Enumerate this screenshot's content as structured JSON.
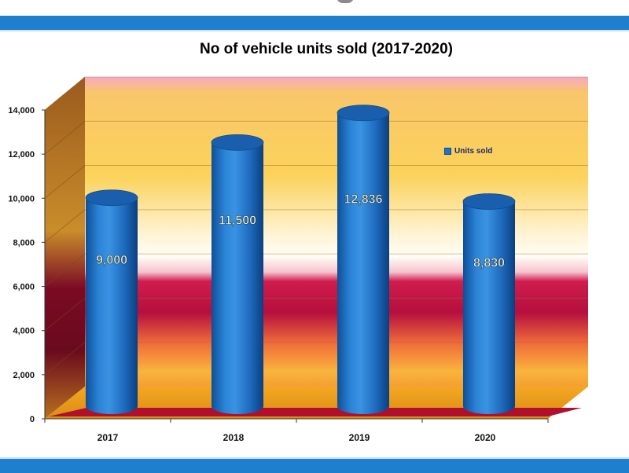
{
  "chart_data": {
    "type": "bar",
    "title": "No of vehicle units sold (2017-2020)",
    "categories": [
      "2017",
      "2018",
      "2019",
      "2020"
    ],
    "series": [
      {
        "name": "Units sold",
        "values": [
          9000,
          11500,
          12836,
          8830
        ],
        "labels": [
          "9,000",
          "11,500",
          "12,836",
          "8,830"
        ]
      }
    ],
    "ylim": [
      0,
      14000
    ],
    "yticks": [
      0,
      2000,
      4000,
      6000,
      8000,
      10000,
      12000,
      14000
    ],
    "ytick_labels": [
      "0",
      "2,000",
      "4,000",
      "6,000",
      "8,000",
      "10,000",
      "12,000",
      "14,000"
    ],
    "grid": true,
    "legend_position": "right",
    "bar_shape": "3d-cylinder",
    "colors": {
      "bar": "#1f72c8",
      "band": "#1f7fcf"
    }
  }
}
